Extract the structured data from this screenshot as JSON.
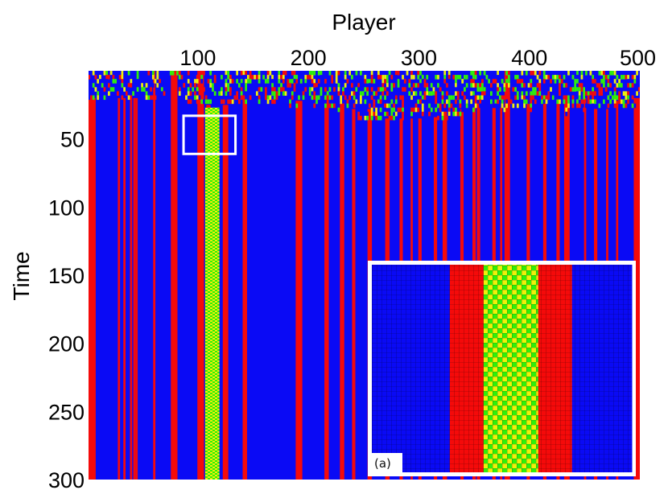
{
  "colors": {
    "blue": "#0a0af5",
    "red": "#f50a0a",
    "green": "#2ef00a",
    "yellow": "#f0f00a",
    "frame": "#ffffff"
  },
  "chart_data": {
    "type": "heatmap",
    "title": "",
    "xlabel": "Player",
    "ylabel": "Time",
    "x_axis_position": "top",
    "y_axis_inverted": true,
    "xlim": [
      1,
      500
    ],
    "ylim": [
      0,
      300
    ],
    "x_ticks": [
      100,
      200,
      300,
      400,
      500
    ],
    "y_ticks": [
      50,
      100,
      150,
      200,
      250,
      300
    ],
    "x_tick_labels": [
      "100",
      "200",
      "300",
      "400",
      "500"
    ],
    "y_tick_labels": [
      "50",
      "100",
      "150",
      "200",
      "250",
      "300"
    ],
    "grid": false,
    "background_strategy": "blue",
    "transient_end_time": 35,
    "red_strips": [
      {
        "x0": 1,
        "x1": 7,
        "t_start": 20
      },
      {
        "x0": 28,
        "x1": 29,
        "t_start": 20
      },
      {
        "x0": 33,
        "x1": 34,
        "t_start": 20
      },
      {
        "x0": 39,
        "x1": 40,
        "t_start": 20
      },
      {
        "x0": 42,
        "x1": 43,
        "t_start": 20
      },
      {
        "x0": 44,
        "x1": 45,
        "t_start": 20
      },
      {
        "x0": 60,
        "x1": 61,
        "t_start": 0
      },
      {
        "x0": 76,
        "x1": 81,
        "t_start": 0
      },
      {
        "x0": 100,
        "x1": 105,
        "t_start": 0
      },
      {
        "x0": 108,
        "x1": 111,
        "t_start": 25
      },
      {
        "x0": 123,
        "x1": 127,
        "t_start": 25
      },
      {
        "x0": 141,
        "x1": 144,
        "t_start": 24
      },
      {
        "x0": 189,
        "x1": 194,
        "t_start": 22
      },
      {
        "x0": 215,
        "x1": 218,
        "t_start": 24
      },
      {
        "x0": 229,
        "x1": 232,
        "t_start": 24
      },
      {
        "x0": 240,
        "x1": 242,
        "t_start": 28
      },
      {
        "x0": 254,
        "x1": 257,
        "t_start": 28
      },
      {
        "x0": 270,
        "x1": 273,
        "t_start": 35
      },
      {
        "x0": 283,
        "x1": 285,
        "t_start": 35
      },
      {
        "x0": 293,
        "x1": 294,
        "t_start": 35
      },
      {
        "x0": 300,
        "x1": 302,
        "t_start": 35
      },
      {
        "x0": 314,
        "x1": 316,
        "t_start": 34
      },
      {
        "x0": 322,
        "x1": 325,
        "t_start": 30
      },
      {
        "x0": 338,
        "x1": 340,
        "t_start": 28
      },
      {
        "x0": 349,
        "x1": 351,
        "t_start": 26
      },
      {
        "x0": 353,
        "x1": 355,
        "t_start": 26
      },
      {
        "x0": 367,
        "x1": 369,
        "t_start": 24
      },
      {
        "x0": 374,
        "x1": 375,
        "t_start": 24
      },
      {
        "x0": 378,
        "x1": 382,
        "t_start": 0
      },
      {
        "x0": 398,
        "x1": 400,
        "t_start": 24
      },
      {
        "x0": 413,
        "x1": 415,
        "t_start": 24
      },
      {
        "x0": 425,
        "x1": 427,
        "t_start": 24
      },
      {
        "x0": 432,
        "x1": 436,
        "t_start": 24
      },
      {
        "x0": 450,
        "x1": 451,
        "t_start": 20
      },
      {
        "x0": 459,
        "x1": 461,
        "t_start": 28
      },
      {
        "x0": 470,
        "x1": 471,
        "t_start": 28
      },
      {
        "x0": 479,
        "x1": 480,
        "t_start": 22
      },
      {
        "x0": 495,
        "x1": 500,
        "t_start": 20
      }
    ],
    "cooperator_column": {
      "x0": 107,
      "x1": 119,
      "t_start": 27,
      "pattern": "alternating green/yellow"
    },
    "zoom_box": {
      "x0": 87,
      "x1": 134,
      "t0": 33,
      "t1": 61
    },
    "inset": {
      "label": "(a)",
      "description_of_columns": [
        "blue",
        "red",
        "green-yellow",
        "red",
        "blue"
      ],
      "column_fractions": [
        0.3,
        0.13,
        0.21,
        0.13,
        0.23
      ]
    }
  }
}
